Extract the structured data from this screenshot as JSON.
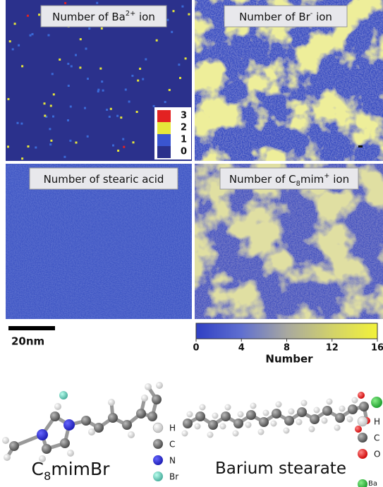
{
  "panels": [
    {
      "title": [
        {
          "t": "Number of Ba"
        },
        {
          "sup": "2+"
        },
        {
          "t": " ion"
        }
      ],
      "legend": [
        "3",
        "2",
        "1",
        "0"
      ]
    },
    {
      "title": [
        {
          "t": "Number of Br"
        },
        {
          "sup": "-"
        },
        {
          "t": " ion"
        }
      ]
    },
    {
      "title": [
        {
          "t": "Number of stearic acid"
        }
      ]
    },
    {
      "title": [
        {
          "t": "Number of C"
        },
        {
          "sub": "8"
        },
        {
          "t": "mim"
        },
        {
          "sup": "+"
        },
        {
          "t": " ion"
        }
      ]
    }
  ],
  "scale_bar": "20nm",
  "colorbar": {
    "ticks": [
      0,
      4,
      8,
      12,
      16
    ],
    "label": "Number"
  },
  "molecules": [
    {
      "name": [
        {
          "t": "C"
        },
        {
          "sub": "8"
        },
        {
          "t": "mimBr"
        }
      ],
      "atoms": [
        "H",
        "C",
        "N",
        "Br"
      ]
    },
    {
      "name": [
        {
          "t": "Barium stearate"
        }
      ],
      "atoms": [
        "H",
        "C",
        "O",
        "Ba"
      ]
    }
  ]
}
